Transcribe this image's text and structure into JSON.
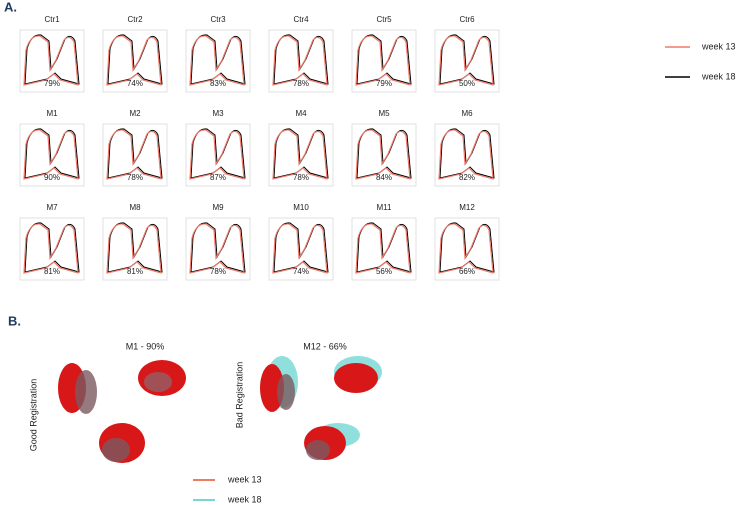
{
  "label_a": "A.",
  "panels": [
    {
      "title": "Ctr1",
      "score": "79%"
    },
    {
      "title": "Ctr2",
      "score": "74%"
    },
    {
      "title": "Ctr3",
      "score": "83%"
    },
    {
      "title": "Ctr4",
      "score": "78%"
    },
    {
      "title": "Ctr5",
      "score": "79%"
    },
    {
      "title": "Ctr6",
      "score": "50%"
    },
    {
      "title": "M1",
      "score": "90%"
    },
    {
      "title": "M2",
      "score": "78%"
    },
    {
      "title": "M3",
      "score": "87%"
    },
    {
      "title": "M4",
      "score": "78%"
    },
    {
      "title": "M5",
      "score": "84%"
    },
    {
      "title": "M6",
      "score": "82%"
    },
    {
      "title": "M7",
      "score": "81%"
    },
    {
      "title": "M8",
      "score": "81%"
    },
    {
      "title": "M9",
      "score": "78%"
    },
    {
      "title": "M10",
      "score": "74%"
    },
    {
      "title": "M11",
      "score": "56%"
    },
    {
      "title": "M12",
      "score": "66%"
    }
  ],
  "legend": [
    {
      "label": "week 13",
      "color": "#f07a6a"
    },
    {
      "label": "week 18",
      "color": "#000000"
    }
  ],
  "label_b": "B.",
  "examples": [
    {
      "title": "M1 - 90%",
      "side_label": "Good Registration"
    },
    {
      "title": "M12 - 66%",
      "side_label": "Bad Registration"
    }
  ],
  "legend_b": [
    {
      "label": "week 13",
      "color": "#e8502a"
    },
    {
      "label": "week 18",
      "color": "#4ec9c0"
    }
  ]
}
